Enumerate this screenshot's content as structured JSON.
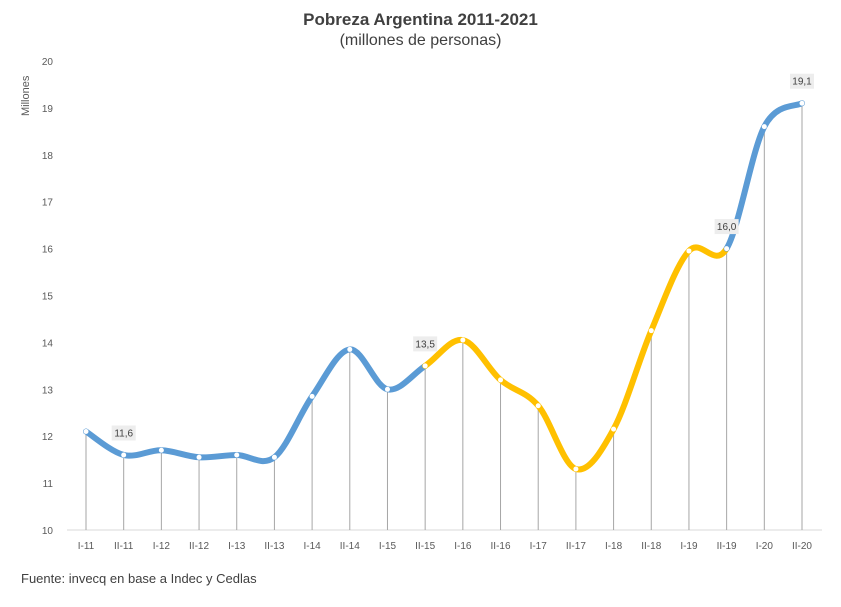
{
  "chart_data": {
    "type": "line",
    "title": "Pobreza Argentina 2011-2021",
    "subtitle": "(millones de personas)",
    "xlabel": "",
    "ylabel": "Millones",
    "ylim": [
      10,
      20
    ],
    "yticks": [
      10,
      11,
      12,
      13,
      14,
      15,
      16,
      17,
      18,
      19,
      20
    ],
    "grid": false,
    "categories": [
      "I-11",
      "II-11",
      "I-12",
      "II-12",
      "I-13",
      "II-13",
      "I-14",
      "II-14",
      "I-15",
      "II-15",
      "I-16",
      "II-16",
      "I-17",
      "II-17",
      "I-18",
      "II-18",
      "I-19",
      "II-19",
      "I-20",
      "II-20"
    ],
    "series": [
      {
        "values": [
          12.1,
          11.6,
          11.7,
          11.55,
          11.6,
          11.55,
          12.85,
          13.85,
          13.0,
          13.5,
          14.05,
          13.2,
          12.65,
          11.3,
          12.15,
          14.25,
          15.95,
          16.0,
          18.6,
          19.1
        ]
      }
    ],
    "segment_colors": [
      {
        "from": 0,
        "to": 9,
        "color": "#5b9bd5"
      },
      {
        "from": 9,
        "to": 17,
        "color": "#ffc000"
      },
      {
        "from": 17,
        "to": 19,
        "color": "#5b9bd5"
      }
    ],
    "data_labels": [
      {
        "index": 1,
        "text": "11,6"
      },
      {
        "index": 9,
        "text": "13,5"
      },
      {
        "index": 17,
        "text": "16,0"
      },
      {
        "index": 19,
        "text": "19,1"
      }
    ],
    "source": "Fuente: invecq en base a Indec y Cedlas"
  }
}
